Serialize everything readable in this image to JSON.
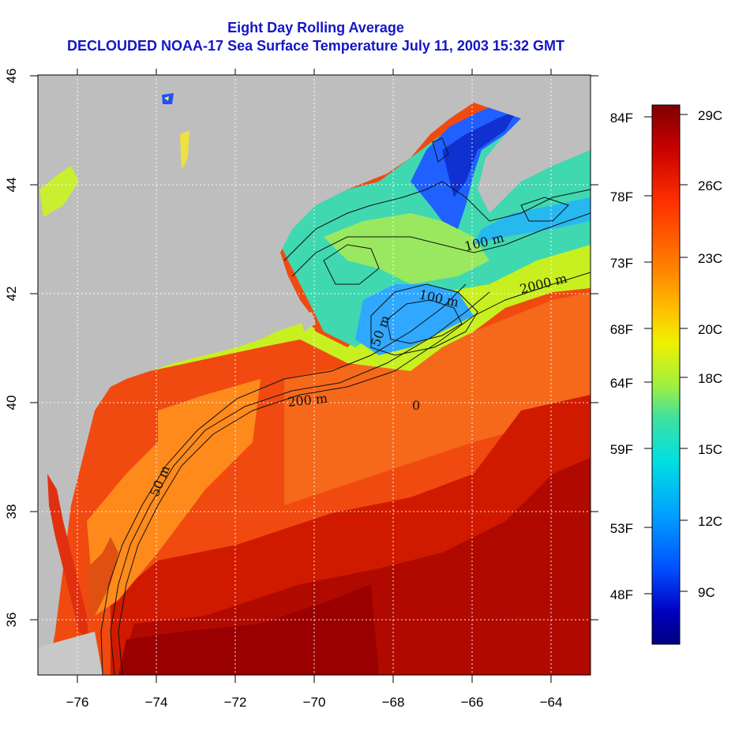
{
  "title": {
    "line1": "Eight Day Rolling Average",
    "line2": "DECLOUDED NOAA-17 Sea Surface Temperature July 11, 2003 15:32 GMT"
  },
  "map": {
    "lon_range": [
      -77,
      -63
    ],
    "lat_range": [
      35,
      46
    ],
    "x_ticks": [
      "−76",
      "−74",
      "−72",
      "−70",
      "−68",
      "−66",
      "−64"
    ],
    "y_ticks": [
      "36",
      "38",
      "40",
      "42",
      "44",
      "46"
    ],
    "land_color": "#bebebe",
    "gridlines": "dotted white"
  },
  "contour_labels": {
    "c100": "100 m",
    "c100b": "100 m",
    "c2000": "2000 m",
    "c50": "50 m",
    "c50b": "50 m",
    "c200": "200 m",
    "c0": "0"
  },
  "colorbar": {
    "fahrenheit": [
      "84F",
      "78F",
      "73F",
      "68F",
      "64F",
      "59F",
      "53F",
      "48F"
    ],
    "celsius": [
      "29C",
      "26C",
      "23C",
      "20C",
      "18C",
      "15C",
      "12C",
      "9C"
    ],
    "colors": [
      "#800000",
      "#c80000",
      "#ff3000",
      "#ff8000",
      "#ffc000",
      "#f0f000",
      "#a0f040",
      "#40e0a0",
      "#00e0e0",
      "#00a0ff",
      "#0050ff",
      "#0000c0",
      "#000080"
    ]
  }
}
